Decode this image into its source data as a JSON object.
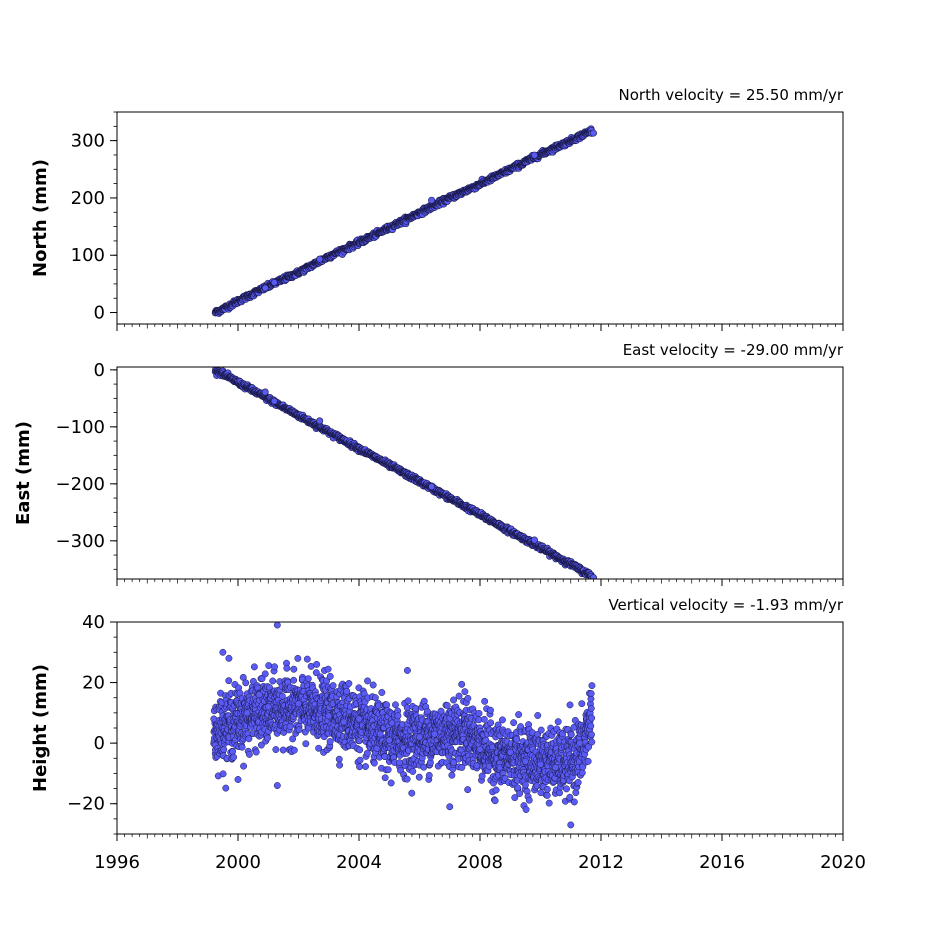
{
  "chart_data": [
    {
      "type": "scatter",
      "title": "North velocity = 25.50 mm/yr",
      "ylabel": "North (mm)",
      "xlim": [
        1996,
        2020
      ],
      "ylim": [
        -20,
        350
      ],
      "yticks": [
        0,
        100,
        200,
        300
      ],
      "ytick_labels": [
        "0",
        "100",
        "200",
        "300"
      ],
      "show_xtick_labels": false,
      "marker_color": "#5a5af5",
      "series": [
        {
          "values": [
            {
              "x": 1999.25,
              "y": 0
            },
            {
              "x": 1999.5,
              "y": 6
            },
            {
              "x": 2000.0,
              "y": 20
            },
            {
              "x": 2001.0,
              "y": 46
            },
            {
              "x": 2002.0,
              "y": 70
            },
            {
              "x": 2003.0,
              "y": 98
            },
            {
              "x": 2004.0,
              "y": 122
            },
            {
              "x": 2005.0,
              "y": 148
            },
            {
              "x": 2006.0,
              "y": 174
            },
            {
              "x": 2007.0,
              "y": 200
            },
            {
              "x": 2008.0,
              "y": 224
            },
            {
              "x": 2009.0,
              "y": 250
            },
            {
              "x": 2010.0,
              "y": 276
            },
            {
              "x": 2011.0,
              "y": 300
            },
            {
              "x": 2011.7,
              "y": 318
            }
          ]
        }
      ]
    },
    {
      "type": "scatter",
      "title": "East velocity = -29.00 mm/yr",
      "ylabel": "East (mm)",
      "xlim": [
        1996,
        2020
      ],
      "ylim": [
        -367,
        5
      ],
      "yticks": [
        0,
        -100,
        -200,
        -300
      ],
      "ytick_labels": [
        "0",
        "−100",
        "−200",
        "−300"
      ],
      "show_xtick_labels": false,
      "marker_color": "#5a5af5",
      "series": [
        {
          "values": [
            {
              "x": 1999.25,
              "y": 0
            },
            {
              "x": 1999.5,
              "y": -7
            },
            {
              "x": 2000.0,
              "y": -22
            },
            {
              "x": 2001.0,
              "y": -51
            },
            {
              "x": 2002.0,
              "y": -80
            },
            {
              "x": 2003.0,
              "y": -109
            },
            {
              "x": 2004.0,
              "y": -138
            },
            {
              "x": 2005.0,
              "y": -167
            },
            {
              "x": 2006.0,
              "y": -196
            },
            {
              "x": 2007.0,
              "y": -225
            },
            {
              "x": 2008.0,
              "y": -254
            },
            {
              "x": 2009.0,
              "y": -283
            },
            {
              "x": 2010.0,
              "y": -312
            },
            {
              "x": 2011.0,
              "y": -341
            },
            {
              "x": 2011.7,
              "y": -362
            }
          ]
        }
      ]
    },
    {
      "type": "scatter",
      "title": "Vertical velocity = -1.93 mm/yr",
      "ylabel": "Height (mm)",
      "xlim": [
        1996,
        2020
      ],
      "ylim": [
        -30,
        40
      ],
      "yticks": [
        -20,
        0,
        20,
        40
      ],
      "ytick_labels": [
        "−20",
        "0",
        "20",
        "40"
      ],
      "xticks": [
        1996,
        2000,
        2004,
        2008,
        2012,
        2016,
        2020
      ],
      "xtick_labels": [
        "1996",
        "2000",
        "2004",
        "2008",
        "2012",
        "2016",
        "2020"
      ],
      "show_xtick_labels": true,
      "marker_color": "#5a5af5",
      "series": [
        {
          "values": [
            {
              "x": 1999.2,
              "y": 8
            },
            {
              "x": 1999.5,
              "y": 30
            },
            {
              "x": 1999.7,
              "y": 28
            },
            {
              "x": 2000.0,
              "y": -12
            },
            {
              "x": 2000.3,
              "y": 10
            },
            {
              "x": 2000.7,
              "y": 16
            },
            {
              "x": 2001.0,
              "y": 12
            },
            {
              "x": 2001.3,
              "y": 39
            },
            {
              "x": 2001.3,
              "y": -14
            },
            {
              "x": 2002.0,
              "y": 13
            },
            {
              "x": 2002.6,
              "y": 26
            },
            {
              "x": 2003.0,
              "y": 9
            },
            {
              "x": 2003.5,
              "y": 7
            },
            {
              "x": 2004.0,
              "y": 8
            },
            {
              "x": 2004.7,
              "y": 3
            },
            {
              "x": 2005.0,
              "y": 1
            },
            {
              "x": 2005.6,
              "y": 24
            },
            {
              "x": 2006.0,
              "y": 2
            },
            {
              "x": 2006.5,
              "y": 3
            },
            {
              "x": 2007.0,
              "y": -21
            },
            {
              "x": 2007.5,
              "y": 17
            },
            {
              "x": 2008.0,
              "y": -2
            },
            {
              "x": 2008.5,
              "y": -19
            },
            {
              "x": 2009.0,
              "y": -3
            },
            {
              "x": 2009.5,
              "y": -6
            },
            {
              "x": 2010.0,
              "y": -7
            },
            {
              "x": 2010.5,
              "y": -8
            },
            {
              "x": 2011.0,
              "y": -27
            },
            {
              "x": 2011.3,
              "y": 0
            },
            {
              "x": 2011.7,
              "y": 19
            }
          ]
        }
      ]
    }
  ]
}
